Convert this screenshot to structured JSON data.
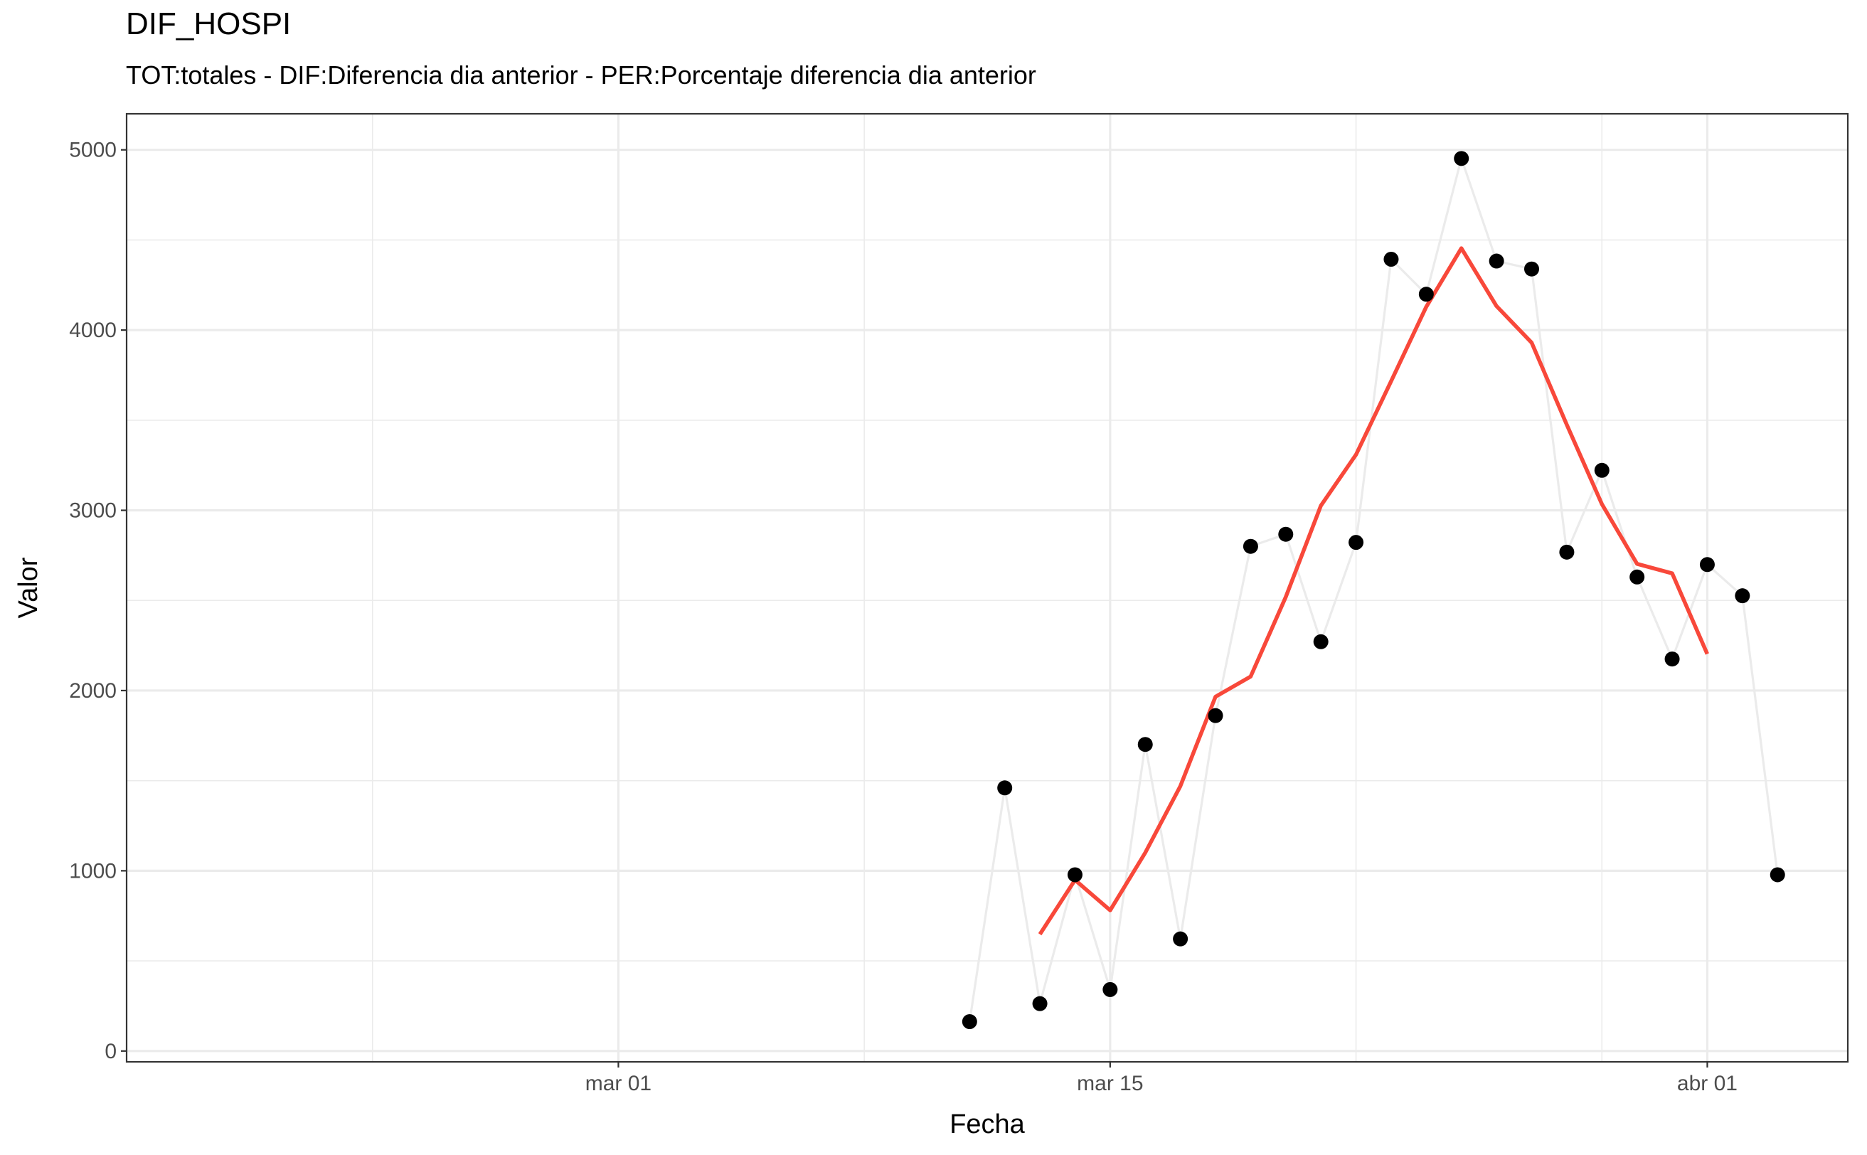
{
  "chart_data": {
    "type": "line",
    "title": "DIF_HOSPI",
    "subtitle": "TOT:totales - DIF:Diferencia dia anterior - PER:Porcentaje diferencia dia anterior",
    "xlabel": "Fecha",
    "ylabel": "Valor",
    "x_tick_labels": [
      {
        "date": "2020-03-01",
        "label": "mar 01"
      },
      {
        "date": "2020-03-15",
        "label": "mar 15"
      },
      {
        "date": "2020-04-01",
        "label": "abr 01"
      }
    ],
    "x_minor_dates": [
      "2020-02-23",
      "2020-03-08",
      "2020-03-22",
      "2020-03-29"
    ],
    "xlim": [
      "2020-02-16",
      "2020-04-05"
    ],
    "y_ticks": [
      0,
      1000,
      2000,
      3000,
      4000,
      5000
    ],
    "y_minor": [
      500,
      1500,
      2500,
      3500,
      4500
    ],
    "ylim": [
      -60,
      5200
    ],
    "grid": true,
    "series": [
      {
        "kind": "points+line",
        "color": "#000000",
        "line_color": "#ebebeb",
        "points": [
          {
            "x": "2020-03-11",
            "y": 163
          },
          {
            "x": "2020-03-12",
            "y": 1460
          },
          {
            "x": "2020-03-13",
            "y": 263
          },
          {
            "x": "2020-03-14",
            "y": 978
          },
          {
            "x": "2020-03-15",
            "y": 341
          },
          {
            "x": "2020-03-16",
            "y": 1701
          },
          {
            "x": "2020-03-17",
            "y": 622
          },
          {
            "x": "2020-03-18",
            "y": 1861
          },
          {
            "x": "2020-03-19",
            "y": 2800
          },
          {
            "x": "2020-03-20",
            "y": 2867
          },
          {
            "x": "2020-03-21",
            "y": 2271
          },
          {
            "x": "2020-03-22",
            "y": 2822
          },
          {
            "x": "2020-03-23",
            "y": 4393
          },
          {
            "x": "2020-03-24",
            "y": 4199
          },
          {
            "x": "2020-03-25",
            "y": 4952
          },
          {
            "x": "2020-03-26",
            "y": 4383
          },
          {
            "x": "2020-03-27",
            "y": 4339
          },
          {
            "x": "2020-03-28",
            "y": 2768
          },
          {
            "x": "2020-03-29",
            "y": 3222
          },
          {
            "x": "2020-03-30",
            "y": 2630
          },
          {
            "x": "2020-03-31",
            "y": 2175
          },
          {
            "x": "2020-04-01",
            "y": 2699
          },
          {
            "x": "2020-04-02",
            "y": 2526
          },
          {
            "x": "2020-04-03",
            "y": 978
          }
        ]
      },
      {
        "kind": "line",
        "color": "#f8483a",
        "points": [
          {
            "x": "2020-03-13",
            "y": 648
          },
          {
            "x": "2020-03-14",
            "y": 949
          },
          {
            "x": "2020-03-15",
            "y": 781
          },
          {
            "x": "2020-03-16",
            "y": 1100
          },
          {
            "x": "2020-03-17",
            "y": 1470
          },
          {
            "x": "2020-03-18",
            "y": 1966
          },
          {
            "x": "2020-03-19",
            "y": 2078
          },
          {
            "x": "2020-03-20",
            "y": 2519
          },
          {
            "x": "2020-03-21",
            "y": 3026
          },
          {
            "x": "2020-03-22",
            "y": 3309
          },
          {
            "x": "2020-03-23",
            "y": 3717
          },
          {
            "x": "2020-03-24",
            "y": 4129
          },
          {
            "x": "2020-03-25",
            "y": 4454
          },
          {
            "x": "2020-03-26",
            "y": 4133
          },
          {
            "x": "2020-03-27",
            "y": 3930
          },
          {
            "x": "2020-03-28",
            "y": 3475
          },
          {
            "x": "2020-03-29",
            "y": 3034
          },
          {
            "x": "2020-03-30",
            "y": 2703
          },
          {
            "x": "2020-03-31",
            "y": 2650
          },
          {
            "x": "2020-04-01",
            "y": 2203
          }
        ]
      }
    ]
  }
}
